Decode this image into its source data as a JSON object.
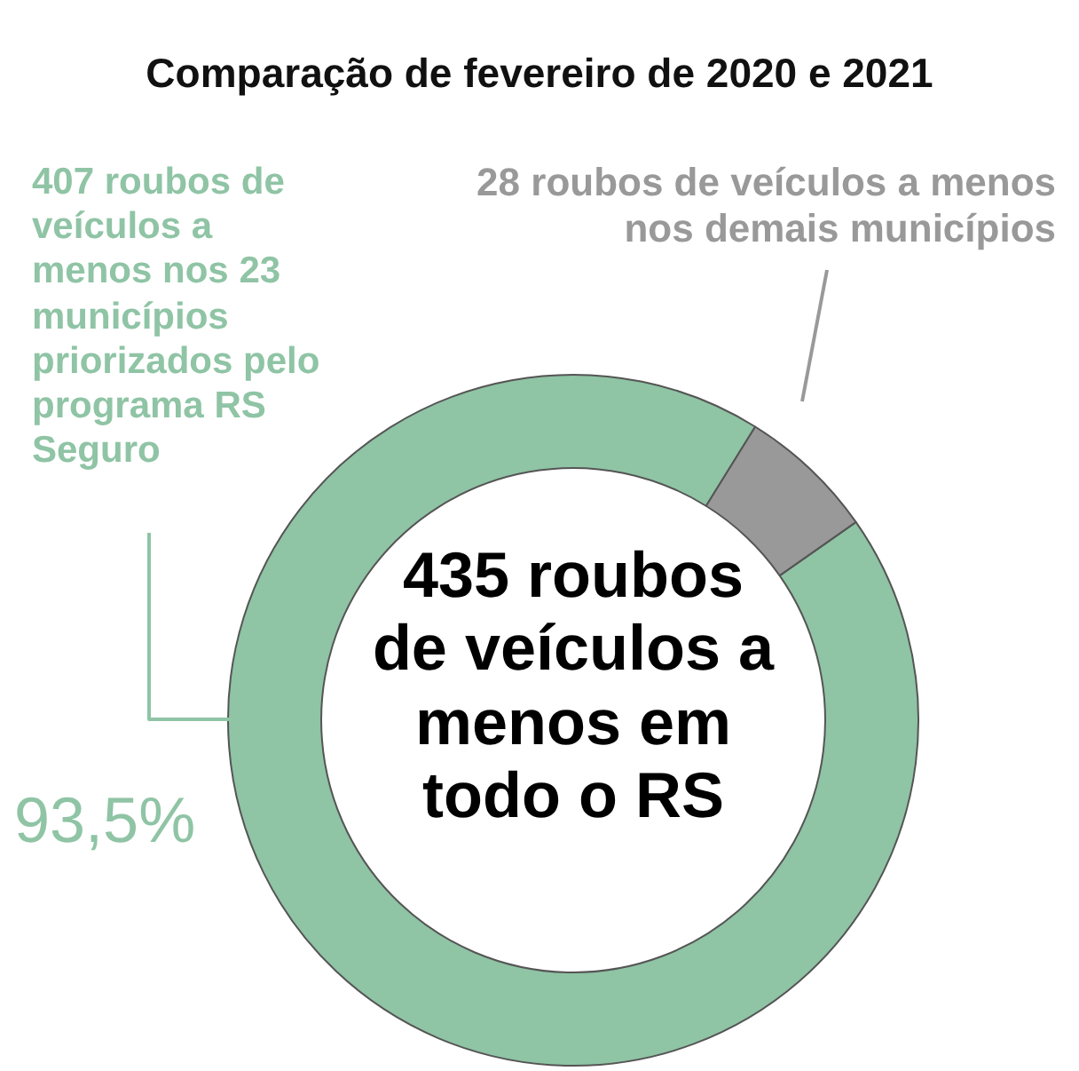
{
  "chart_data": {
    "type": "donut",
    "title": "Comparação de fevereiro de 2020 e 2021",
    "categories": [
      "407 roubos de veículos a menos nos 23 municípios priorizados pelo programa RS Seguro",
      "28 roubos de veículos a menos nos demais municípios"
    ],
    "values": [
      407,
      28
    ],
    "colors": [
      "#8fc4a5",
      "#999999"
    ],
    "annotations": [
      "435 roubos de veículos a menos em todo o RS",
      "93,5%"
    ],
    "legend": false
  }
}
